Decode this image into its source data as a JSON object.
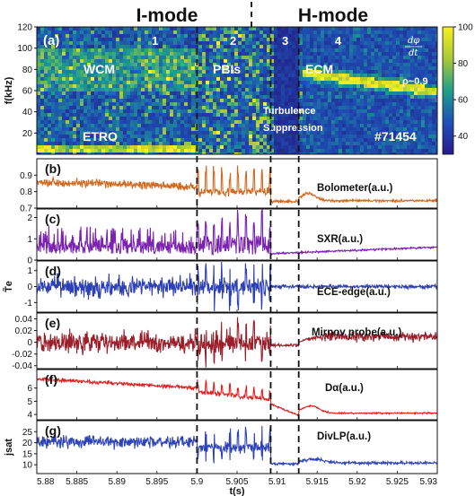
{
  "figure": {
    "mode_labels": [
      "I-mode",
      "H-mode"
    ],
    "x_axis": {
      "label": "t(s)",
      "range": [
        5.88,
        5.93
      ],
      "ticks": [
        "5.88",
        "5.885",
        "5.89",
        "5.895",
        "5.9",
        "5.905",
        "5.91",
        "5.915",
        "5.92",
        "5.925",
        "5.93"
      ]
    },
    "transition_times": [
      5.9,
      5.9092,
      5.9127
    ],
    "mode_boundary_time": 5.9068
  },
  "chart_data": [
    {
      "type": "heatmap",
      "panel_tag": "(a)",
      "ylabel": "f(kHz)",
      "ylim": [
        0,
        120
      ],
      "yticks": [
        "20",
        "40",
        "60",
        "80",
        "100",
        "120"
      ],
      "colorbar": {
        "range": [
          30,
          100
        ],
        "ticks": [
          "40",
          "60",
          "80",
          "100"
        ]
      },
      "phase_numbers": [
        "1",
        "2",
        "3",
        "4"
      ],
      "annotations": [
        "WCM",
        "PBIs",
        "ECM",
        "ETRO",
        "Turbulence",
        "Suppression",
        "#71454",
        "ρ~0.9"
      ],
      "features": [
        {
          "name": "WCM",
          "t_range": [
            5.88,
            5.9
          ],
          "f_range": [
            60,
            100
          ]
        },
        {
          "name": "ETRO",
          "t_range": [
            5.88,
            5.9
          ],
          "f_range": [
            2,
            10
          ]
        },
        {
          "name": "ECM",
          "t_range": [
            5.913,
            5.93
          ],
          "f_start": 78,
          "f_end": 60
        }
      ]
    },
    {
      "type": "line",
      "panel_tag": "(b)",
      "label": "Bolometer(a.u.)",
      "ylim": [
        0.7,
        1.0
      ],
      "yticks": [
        "0.7",
        "0.8",
        "0.9"
      ],
      "color": "#d2691e"
    },
    {
      "type": "line",
      "panel_tag": "(c)",
      "label": "SXR(a.u.)",
      "ylim": [
        0,
        2.4
      ],
      "yticks": [
        "0",
        "1",
        "2"
      ],
      "color": "#7b22b0"
    },
    {
      "type": "line",
      "panel_tag": "(d)",
      "label": "ECE-edge(a.u.)",
      "ylabel": "T̃e",
      "ylim": [
        -1.6,
        1.6
      ],
      "yticks": [
        "-1",
        "0",
        "1"
      ],
      "color": "#2c3fb5"
    },
    {
      "type": "line",
      "panel_tag": "(e)",
      "label": "Mirnov probe(a.u.)",
      "ylim": [
        -0.045,
        0.05
      ],
      "yticks": [
        "-0.04",
        "-0.02",
        "0",
        "0.02",
        "0.04"
      ],
      "color": "#9b1f2a"
    },
    {
      "type": "line",
      "panel_tag": "(f)",
      "label": "Dα(a.u.)",
      "ylim": [
        3.6,
        7.4
      ],
      "yticks": [
        "4",
        "5",
        "6"
      ],
      "color": "#e02020"
    },
    {
      "type": "line",
      "panel_tag": "(g)",
      "label": "DivLP(a.u.)",
      "ylabel": "jsat",
      "ylim": [
        6,
        30
      ],
      "yticks": [
        "10",
        "15",
        "20",
        "25"
      ],
      "color": "#2f43b8"
    }
  ]
}
